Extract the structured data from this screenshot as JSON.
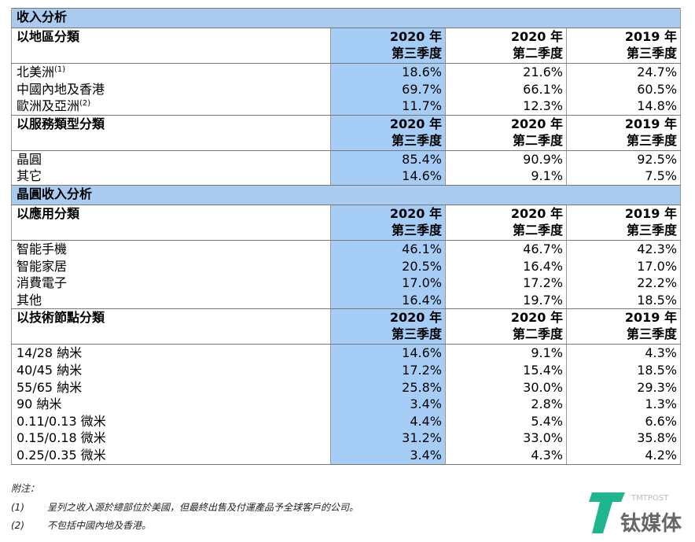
{
  "sections": [
    {
      "title": "收入分析",
      "groups": [
        {
          "title": "以地區分類",
          "columns": [
            [
              "2020 年",
              "第三季度"
            ],
            [
              "2020 年",
              "第二季度"
            ],
            [
              "2019 年",
              "第三季度"
            ]
          ],
          "rows": [
            {
              "label": "北美洲",
              "note": "(1)",
              "values": [
                "18.6%",
                "21.6%",
                "24.7%"
              ]
            },
            {
              "label": "中國內地及香港",
              "values": [
                "69.7%",
                "66.1%",
                "60.5%"
              ]
            },
            {
              "label": "歐洲及亞洲",
              "note": "(2)",
              "values": [
                "11.7%",
                "12.3%",
                "14.8%"
              ]
            }
          ]
        },
        {
          "title": "以服務類型分類",
          "columns": [
            [
              "2020 年",
              "第三季度"
            ],
            [
              "2020 年",
              "第二季度"
            ],
            [
              "2019 年",
              "第三季度"
            ]
          ],
          "rows": [
            {
              "label": "晶圓",
              "values": [
                "85.4%",
                "90.9%",
                "92.5%"
              ]
            },
            {
              "label": "其它",
              "values": [
                "14.6%",
                "9.1%",
                "7.5%"
              ]
            }
          ]
        }
      ]
    },
    {
      "title": "晶圓收入分析",
      "groups": [
        {
          "title": "以應用分類",
          "columns": [
            [
              "2020 年",
              "第三季度"
            ],
            [
              "2020 年",
              "第二季度"
            ],
            [
              "2019 年",
              "第三季度"
            ]
          ],
          "rows": [
            {
              "label": "智能手機",
              "values": [
                "46.1%",
                "46.7%",
                "42.3%"
              ]
            },
            {
              "label": "智能家居",
              "values": [
                "20.5%",
                "16.4%",
                "17.0%"
              ]
            },
            {
              "label": "消費電子",
              "values": [
                "17.0%",
                "17.2%",
                "22.2%"
              ]
            },
            {
              "label": "其他",
              "values": [
                "16.4%",
                "19.7%",
                "18.5%"
              ]
            }
          ]
        },
        {
          "title": "以技術節點分類",
          "columns": [
            [
              "2020 年",
              "第三季度"
            ],
            [
              "2020 年",
              "第二季度"
            ],
            [
              "2019 年",
              "第三季度"
            ]
          ],
          "rows": [
            {
              "label": "14/28 納米",
              "values": [
                "14.6%",
                "9.1%",
                "4.3%"
              ]
            },
            {
              "label": "40/45 納米",
              "values": [
                "17.2%",
                "15.4%",
                "18.5%"
              ]
            },
            {
              "label": "55/65 納米",
              "values": [
                "25.8%",
                "30.0%",
                "29.3%"
              ]
            },
            {
              "label": "90 納米",
              "values": [
                "3.4%",
                "2.8%",
                "1.3%"
              ]
            },
            {
              "label": "0.11/0.13 微米",
              "values": [
                "4.4%",
                "5.4%",
                "6.6%"
              ]
            },
            {
              "label": "0.15/0.18 微米",
              "values": [
                "31.2%",
                "33.0%",
                "35.8%"
              ]
            },
            {
              "label": "0.25/0.35 微米",
              "values": [
                "3.4%",
                "4.3%",
                "4.2%"
              ]
            }
          ]
        }
      ]
    }
  ],
  "footnotes": {
    "title": "附注：",
    "items": [
      {
        "marker": "(1)",
        "text": "呈列之收入源於總部位於美國，但最終出售及付運產品予全球客戶的公司。"
      },
      {
        "marker": "(2)",
        "text": "不包括中國內地及香港。"
      }
    ]
  },
  "logo": {
    "brand": "TMTPOST",
    "name": "钛媒体"
  }
}
